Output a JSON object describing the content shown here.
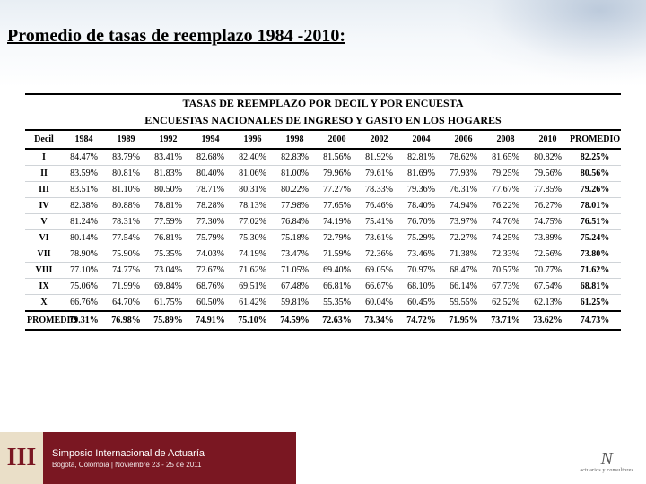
{
  "title": "Promedio de tasas de reemplazo 1984 -2010:",
  "table": {
    "header1": "TASAS DE REEMPLAZO POR DECIL Y POR ENCUESTA",
    "header2": "ENCUESTAS NACIONALES DE INGRESO Y GASTO EN LOS HOGARES",
    "columns": [
      "Decil",
      "1984",
      "1989",
      "1992",
      "1994",
      "1996",
      "1998",
      "2000",
      "2002",
      "2004",
      "2006",
      "2008",
      "2010",
      "PROMEDIO"
    ],
    "rows": [
      [
        "I",
        "84.47%",
        "83.79%",
        "83.41%",
        "82.68%",
        "82.40%",
        "82.83%",
        "81.56%",
        "81.92%",
        "82.81%",
        "78.62%",
        "81.65%",
        "80.82%",
        "82.25%"
      ],
      [
        "II",
        "83.59%",
        "80.81%",
        "81.83%",
        "80.40%",
        "81.06%",
        "81.00%",
        "79.96%",
        "79.61%",
        "81.69%",
        "77.93%",
        "79.25%",
        "79.56%",
        "80.56%"
      ],
      [
        "III",
        "83.51%",
        "81.10%",
        "80.50%",
        "78.71%",
        "80.31%",
        "80.22%",
        "77.27%",
        "78.33%",
        "79.36%",
        "76.31%",
        "77.67%",
        "77.85%",
        "79.26%"
      ],
      [
        "IV",
        "82.38%",
        "80.88%",
        "78.81%",
        "78.28%",
        "78.13%",
        "77.98%",
        "77.65%",
        "76.46%",
        "78.40%",
        "74.94%",
        "76.22%",
        "76.27%",
        "78.01%"
      ],
      [
        "V",
        "81.24%",
        "78.31%",
        "77.59%",
        "77.30%",
        "77.02%",
        "76.84%",
        "74.19%",
        "75.41%",
        "76.70%",
        "73.97%",
        "74.76%",
        "74.75%",
        "76.51%"
      ],
      [
        "VI",
        "80.14%",
        "77.54%",
        "76.81%",
        "75.79%",
        "75.30%",
        "75.18%",
        "72.79%",
        "73.61%",
        "75.29%",
        "72.27%",
        "74.25%",
        "73.89%",
        "75.24%"
      ],
      [
        "VII",
        "78.90%",
        "75.90%",
        "75.35%",
        "74.03%",
        "74.19%",
        "73.47%",
        "71.59%",
        "72.36%",
        "73.46%",
        "71.38%",
        "72.33%",
        "72.56%",
        "73.80%"
      ],
      [
        "VIII",
        "77.10%",
        "74.77%",
        "73.04%",
        "72.67%",
        "71.62%",
        "71.05%",
        "69.40%",
        "69.05%",
        "70.97%",
        "68.47%",
        "70.57%",
        "70.77%",
        "71.62%"
      ],
      [
        "IX",
        "75.06%",
        "71.99%",
        "69.84%",
        "68.76%",
        "69.51%",
        "67.48%",
        "66.81%",
        "66.67%",
        "68.10%",
        "66.14%",
        "67.73%",
        "67.54%",
        "68.81%"
      ],
      [
        "X",
        "66.76%",
        "64.70%",
        "61.75%",
        "60.50%",
        "61.42%",
        "59.81%",
        "55.35%",
        "60.04%",
        "60.45%",
        "59.55%",
        "62.52%",
        "62.13%",
        "61.25%"
      ],
      [
        "PROMEDIO",
        "79.31%",
        "76.98%",
        "75.89%",
        "74.91%",
        "75.10%",
        "74.59%",
        "72.63%",
        "73.34%",
        "74.72%",
        "71.95%",
        "73.71%",
        "73.62%",
        "74.73%"
      ]
    ],
    "colors": {
      "border": "#000000",
      "row_divider": "#d0d4d8",
      "text": "#000000"
    },
    "font": {
      "header_size_pt": 12,
      "cell_size_pt": 10,
      "family": "Times New Roman"
    }
  },
  "footer": {
    "roman": "III",
    "line1": "Simposio Internacional de Actuaría",
    "line2": "Bogotá, Colombia | Noviembre 23 - 25 de 2011",
    "bg_color": "#7a1722",
    "iii_bg": "#eadfc8"
  },
  "footer_right": {
    "logo": "N",
    "sub": "actuarios y consultores"
  },
  "background": {
    "top_gradient_from": "#e8eef4",
    "top_gradient_to": "#ffffff"
  }
}
